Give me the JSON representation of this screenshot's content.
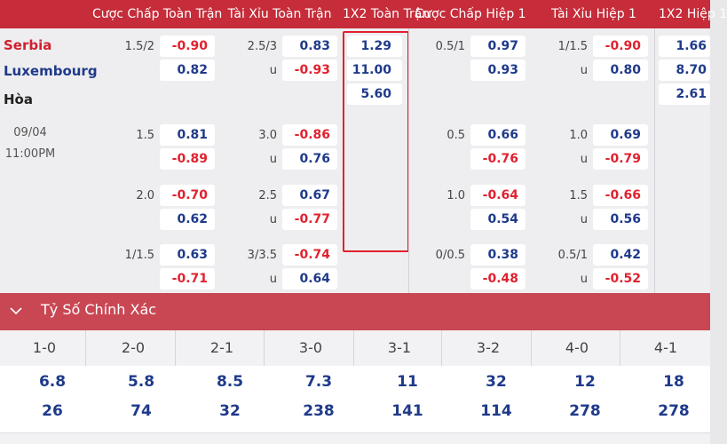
{
  "header": {
    "cols": [
      "Cược Chấp Toàn Trận",
      "Tài Xỉu Toàn Trận",
      "1X2 Toàn Trận",
      "Cược Chấp Hiệp 1",
      "Tài Xỉu Hiệp 1",
      "1X2 Hiệp 1"
    ]
  },
  "match": {
    "home": "Serbia",
    "away": "Luxembourg",
    "draw": "Hòa",
    "date": "09/04",
    "time": "11:00PM"
  },
  "rows": [
    {
      "hdp_line": "1.5/2",
      "hdp_home": "-0.90",
      "hdp_away": "0.82",
      "ou_line": "2.5/3",
      "ou_u": "u",
      "ou_over": "0.83",
      "ou_under": "-0.93",
      "x12_home": "1.29",
      "x12_away": "11.00",
      "x12_draw": "5.60",
      "h1_hdp_line": "0.5/1",
      "h1_hdp_home": "0.97",
      "h1_hdp_away": "0.93",
      "h1_ou_line": "1/1.5",
      "h1_ou_u": "u",
      "h1_ou_over": "-0.90",
      "h1_ou_under": "0.80",
      "h1_x12_home": "1.66",
      "h1_x12_away": "8.70",
      "h1_x12_draw": "2.61"
    },
    {
      "hdp_line": "1.5",
      "hdp_home": "0.81",
      "hdp_away": "-0.89",
      "ou_line": "3.0",
      "ou_u": "u",
      "ou_over": "-0.86",
      "ou_under": "0.76",
      "h1_hdp_line": "0.5",
      "h1_hdp_home": "0.66",
      "h1_hdp_away": "-0.76",
      "h1_ou_line": "1.0",
      "h1_ou_u": "u",
      "h1_ou_over": "0.69",
      "h1_ou_under": "-0.79"
    },
    {
      "hdp_line": "2.0",
      "hdp_home": "-0.70",
      "hdp_away": "0.62",
      "ou_line": "2.5",
      "ou_u": "u",
      "ou_over": "0.67",
      "ou_under": "-0.77",
      "h1_hdp_line": "1.0",
      "h1_hdp_home": "-0.64",
      "h1_hdp_away": "0.54",
      "h1_ou_line": "1.5",
      "h1_ou_u": "u",
      "h1_ou_over": "-0.66",
      "h1_ou_under": "0.56"
    },
    {
      "hdp_line": "1/1.5",
      "hdp_home": "0.63",
      "hdp_away": "-0.71",
      "ou_line": "3/3.5",
      "ou_u": "u",
      "ou_over": "-0.74",
      "ou_under": "0.64",
      "h1_hdp_line": "0/0.5",
      "h1_hdp_home": "0.38",
      "h1_hdp_away": "-0.48",
      "h1_ou_line": "0.5/1",
      "h1_ou_u": "u",
      "h1_ou_over": "0.42",
      "h1_ou_under": "-0.52"
    }
  ],
  "correct_score": {
    "title": "Tỷ Số Chính Xác",
    "icon": "chevron-down-icon",
    "scores": [
      "1-0",
      "2-0",
      "2-1",
      "3-0",
      "3-1",
      "3-2",
      "4-0",
      "4-1"
    ],
    "home_prices": [
      "6.8",
      "5.8",
      "8.5",
      "7.3",
      "11",
      "32",
      "12",
      "18"
    ],
    "away_prices": [
      "26",
      "74",
      "32",
      "238",
      "141",
      "114",
      "278",
      "278"
    ]
  },
  "colors": {
    "header_bg": "#c62c39",
    "section_bg": "#c94753",
    "positive": "#1f3a8a",
    "negative": "#e0222f",
    "highlight_border": "#e3202e"
  }
}
